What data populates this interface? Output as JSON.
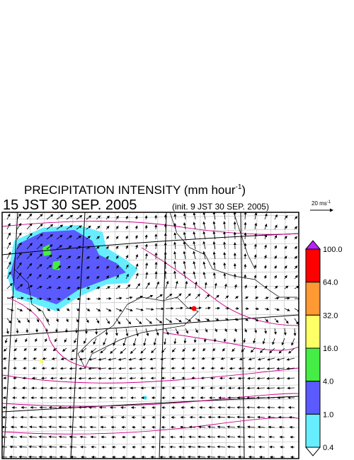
{
  "header": {
    "title": "PRECIPITATION INTENSITY (mm hour",
    "title_superscript": "-1",
    "title_close": ")",
    "valid_time": "15 JST 30 SEP. 2005",
    "init_time": "(init. 9 JST 30 SEP. 2005)"
  },
  "wind_scale": {
    "label": "20 ms",
    "superscript": "-1"
  },
  "colorbar": {
    "labels": [
      "100.0",
      "64.0",
      "32.0",
      "16.0",
      "4.0",
      "1.0",
      "0.4"
    ],
    "colors": [
      "#ff0000",
      "#ff9933",
      "#ffff66",
      "#44ee44",
      "#5a5aff",
      "#66eeff"
    ],
    "over_color": "#bb22ff",
    "under_color": "#ffffff"
  }
}
